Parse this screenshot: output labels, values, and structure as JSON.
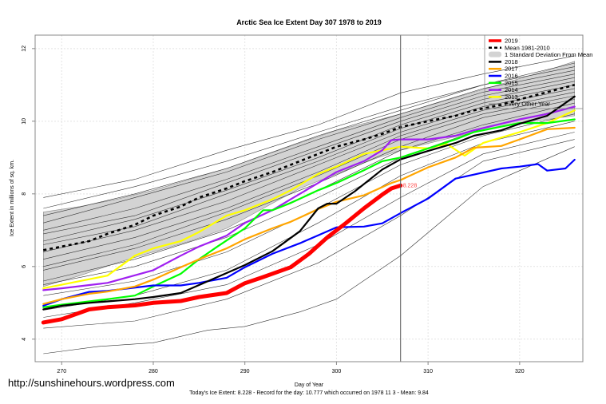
{
  "chart_data": {
    "type": "line",
    "title": "Arctic Sea Ice Extent Day 307 1978 to 2019",
    "xlabel": "Day of Year",
    "ylabel": "Ice Extent in millions of sq. km.",
    "xlim": [
      267.1,
      326.9
    ],
    "ylim": [
      3.38,
      12.37
    ],
    "xticks": [
      270,
      280,
      290,
      300,
      310,
      320
    ],
    "yticks": [
      4,
      6,
      8,
      10,
      12
    ],
    "grid": true,
    "legend_position": "top-right",
    "current_day": 307,
    "current_value_label": "8.228",
    "footer": "Today's Ice Extent: 8.228  - Record for the day: 10.777 which occurred on 1978 11 3  - Mean: 9.84",
    "legend": [
      {
        "label": "2019",
        "color": "#ff0000",
        "style": "thick"
      },
      {
        "label": "Mean 1981-2010",
        "color": "#000000",
        "style": "dashed"
      },
      {
        "label": "1 Standard Deviation From Mean",
        "color": "#d3d3d3",
        "style": "band"
      },
      {
        "label": "2018",
        "color": "#000000",
        "style": "solid"
      },
      {
        "label": "2017",
        "color": "#ffa500",
        "style": "solid"
      },
      {
        "label": "2016",
        "color": "#0000ff",
        "style": "solid"
      },
      {
        "label": "2015",
        "color": "#00ff00",
        "style": "solid"
      },
      {
        "label": "2014",
        "color": "#a020f0",
        "style": "solid"
      },
      {
        "label": "2013",
        "color": "#ffff00",
        "style": "solid"
      },
      {
        "label": "Every Other Year",
        "color": "#444444",
        "style": "thin"
      }
    ],
    "std_band": {
      "x": [
        268,
        272,
        276,
        280,
        284,
        288,
        292,
        296,
        300,
        304,
        307,
        311,
        315,
        319,
        323,
        326
      ],
      "upper": [
        7.5,
        7.65,
        7.85,
        8.1,
        8.4,
        8.7,
        9.05,
        9.4,
        9.75,
        10.0,
        10.2,
        10.5,
        10.8,
        11.1,
        11.4,
        11.65
      ],
      "lower": [
        5.45,
        5.75,
        6.1,
        6.4,
        6.7,
        7.05,
        7.6,
        8.15,
        8.55,
        8.95,
        9.2,
        9.45,
        9.7,
        9.9,
        10.05,
        10.15
      ]
    },
    "mean": {
      "x": [
        268,
        270,
        273,
        275,
        278,
        280,
        283,
        285,
        288,
        290,
        293,
        295,
        298,
        300,
        303,
        305,
        307,
        310,
        313,
        315,
        318,
        320,
        323,
        326
      ],
      "values": [
        6.45,
        6.55,
        6.7,
        6.9,
        7.15,
        7.4,
        7.65,
        7.9,
        8.15,
        8.35,
        8.6,
        8.8,
        9.1,
        9.3,
        9.5,
        9.65,
        9.84,
        10.0,
        10.15,
        10.3,
        10.45,
        10.6,
        10.8,
        11.0
      ]
    },
    "series": [
      {
        "name": "2019",
        "color": "#ff0000",
        "width": 5,
        "x": [
          268,
          270,
          273,
          275,
          278,
          280,
          283,
          285,
          288,
          290,
          292,
          295,
          297,
          299,
          301,
          303,
          305,
          306,
          307
        ],
        "values": [
          4.46,
          4.55,
          4.82,
          4.88,
          4.93,
          5.0,
          5.05,
          5.16,
          5.27,
          5.54,
          5.71,
          5.98,
          6.35,
          6.8,
          7.19,
          7.6,
          7.98,
          8.15,
          8.228
        ]
      },
      {
        "name": "2018",
        "color": "#000000",
        "width": 2.2,
        "x": [
          268,
          270,
          273,
          275,
          278,
          280,
          283,
          285,
          288,
          290,
          293,
          296,
          298,
          299,
          300,
          302,
          305,
          307,
          310,
          313,
          315,
          318,
          320,
          323,
          326
        ],
        "values": [
          4.82,
          4.92,
          5.0,
          5.04,
          5.1,
          5.16,
          5.27,
          5.49,
          5.82,
          6.04,
          6.42,
          6.97,
          7.6,
          7.73,
          7.73,
          8.07,
          8.67,
          8.95,
          9.18,
          9.4,
          9.6,
          9.75,
          9.93,
          10.15,
          10.68
        ]
      },
      {
        "name": "2017",
        "color": "#ffa500",
        "width": 2.2,
        "x": [
          268,
          270,
          273,
          275,
          278,
          280,
          283,
          285,
          288,
          290,
          293,
          295,
          298,
          300,
          303,
          306,
          307,
          310,
          313,
          315,
          318,
          320,
          323,
          326
        ],
        "values": [
          4.97,
          5.1,
          5.25,
          5.31,
          5.45,
          5.64,
          5.98,
          6.2,
          6.5,
          6.75,
          7.05,
          7.23,
          7.58,
          7.78,
          7.96,
          8.3,
          8.38,
          8.73,
          9.0,
          9.27,
          9.32,
          9.5,
          9.78,
          9.82
        ]
      },
      {
        "name": "2016",
        "color": "#0000ff",
        "width": 2.2,
        "x": [
          268,
          270,
          273,
          275,
          280,
          283,
          285,
          288,
          290,
          293,
          296,
          298,
          300,
          303,
          305,
          307,
          310,
          313,
          315,
          318,
          320,
          322,
          323,
          325,
          326
        ],
        "values": [
          4.92,
          5.1,
          5.3,
          5.33,
          5.48,
          5.48,
          5.55,
          5.69,
          5.98,
          6.35,
          6.64,
          6.86,
          7.08,
          7.1,
          7.19,
          7.47,
          7.87,
          8.42,
          8.53,
          8.7,
          8.75,
          8.82,
          8.64,
          8.7,
          8.94
        ]
      },
      {
        "name": "2015",
        "color": "#00ff00",
        "width": 2.2,
        "x": [
          268,
          270,
          275,
          278,
          280,
          283,
          285,
          287,
          290,
          292,
          293,
          295,
          298,
          300,
          303,
          305,
          307,
          310,
          313,
          315,
          318,
          320,
          323,
          326
        ],
        "values": [
          4.88,
          4.95,
          5.1,
          5.2,
          5.45,
          5.8,
          6.2,
          6.55,
          7.05,
          7.55,
          7.55,
          7.75,
          8.1,
          8.3,
          8.65,
          8.9,
          9.0,
          9.25,
          9.5,
          9.7,
          9.85,
          9.95,
          9.95,
          10.05
        ]
      },
      {
        "name": "2014",
        "color": "#a020f0",
        "width": 2.2,
        "x": [
          268,
          270,
          275,
          280,
          283,
          285,
          288,
          290,
          293,
          295,
          298,
          300,
          303,
          305,
          306,
          307,
          310,
          313,
          315,
          320,
          323,
          326
        ],
        "values": [
          5.35,
          5.4,
          5.55,
          5.9,
          6.3,
          6.55,
          6.85,
          7.2,
          7.55,
          7.85,
          8.3,
          8.6,
          8.9,
          9.2,
          9.48,
          9.5,
          9.5,
          9.6,
          9.75,
          10.05,
          10.2,
          10.4
        ]
      },
      {
        "name": "2013",
        "color": "#ffff00",
        "width": 2.2,
        "x": [
          268,
          270,
          275,
          278,
          280,
          283,
          285,
          288,
          290,
          293,
          295,
          298,
          300,
          303,
          305,
          307,
          310,
          312,
          314,
          316,
          318,
          320,
          323,
          326
        ],
        "values": [
          5.4,
          5.5,
          5.75,
          6.3,
          6.5,
          6.7,
          6.95,
          7.4,
          7.55,
          7.85,
          8.1,
          8.55,
          8.75,
          9.1,
          9.2,
          9.3,
          9.25,
          9.38,
          9.05,
          9.4,
          9.55,
          9.7,
          9.95,
          10.3
        ]
      }
    ],
    "other_years": [
      {
        "x": [
          268,
          278,
          288,
          298,
          307,
          316,
          326
        ],
        "values": [
          7.9,
          8.4,
          9.2,
          9.9,
          10.78,
          11.3,
          11.8
        ]
      },
      {
        "x": [
          268,
          278,
          288,
          298,
          307,
          316,
          326
        ],
        "values": [
          7.6,
          8.2,
          8.9,
          9.7,
          10.4,
          11.0,
          11.6
        ]
      },
      {
        "x": [
          268,
          278,
          288,
          298,
          307,
          316,
          326
        ],
        "values": [
          7.4,
          8.0,
          8.7,
          9.6,
          10.3,
          11.0,
          11.5
        ]
      },
      {
        "x": [
          268,
          278,
          288,
          298,
          307,
          316,
          326
        ],
        "values": [
          7.2,
          7.9,
          8.6,
          9.5,
          10.2,
          10.9,
          11.4
        ]
      },
      {
        "x": [
          268,
          278,
          288,
          298,
          307,
          316,
          326
        ],
        "values": [
          7.0,
          7.6,
          8.4,
          9.3,
          10.1,
          10.8,
          11.3
        ]
      },
      {
        "x": [
          268,
          278,
          288,
          298,
          307,
          316,
          326
        ],
        "values": [
          6.9,
          7.4,
          8.3,
          9.2,
          10.0,
          10.7,
          11.2
        ]
      },
      {
        "x": [
          268,
          278,
          288,
          298,
          307,
          316,
          326
        ],
        "values": [
          6.7,
          7.3,
          8.1,
          9.0,
          9.9,
          10.6,
          11.1
        ]
      },
      {
        "x": [
          268,
          278,
          288,
          298,
          307,
          316,
          326
        ],
        "values": [
          6.6,
          7.1,
          8.0,
          8.9,
          9.8,
          10.5,
          11.0
        ]
      },
      {
        "x": [
          268,
          278,
          288,
          298,
          307,
          316,
          326
        ],
        "values": [
          6.4,
          7.0,
          7.8,
          8.8,
          9.7,
          10.4,
          10.9
        ]
      },
      {
        "x": [
          268,
          278,
          288,
          298,
          307,
          316,
          326
        ],
        "values": [
          6.2,
          6.8,
          7.6,
          8.6,
          9.6,
          10.3,
          10.8
        ]
      },
      {
        "x": [
          268,
          278,
          288,
          298,
          307,
          316,
          326
        ],
        "values": [
          6.0,
          6.6,
          7.5,
          8.5,
          9.5,
          10.2,
          10.7
        ]
      },
      {
        "x": [
          268,
          278,
          288,
          298,
          307,
          316,
          326
        ],
        "values": [
          5.9,
          6.5,
          7.3,
          8.3,
          9.3,
          10.1,
          10.6
        ]
      },
      {
        "x": [
          268,
          278,
          288,
          298,
          307,
          316,
          326
        ],
        "values": [
          5.6,
          6.2,
          7.0,
          8.1,
          9.2,
          9.9,
          10.5
        ]
      },
      {
        "x": [
          268,
          278,
          288,
          298,
          307,
          316,
          326
        ],
        "values": [
          5.5,
          6.0,
          6.8,
          7.9,
          9.0,
          9.8,
          10.4
        ]
      },
      {
        "x": [
          268,
          278,
          288,
          298,
          307,
          316,
          326
        ],
        "values": [
          5.2,
          5.6,
          6.4,
          7.6,
          8.8,
          9.6,
          10.2
        ]
      },
      {
        "x": [
          268,
          278,
          288,
          298,
          307,
          316,
          326
        ],
        "values": [
          4.8,
          5.2,
          5.9,
          7.2,
          8.5,
          9.4,
          10.0
        ]
      },
      {
        "x": [
          268,
          278,
          288,
          298,
          307,
          316,
          326
        ],
        "values": [
          4.6,
          5.0,
          5.5,
          6.6,
          7.9,
          9.1,
          9.7
        ]
      },
      {
        "x": [
          268,
          278,
          288,
          298,
          307,
          316,
          326
        ],
        "values": [
          4.3,
          4.5,
          5.1,
          6.1,
          7.4,
          8.9,
          9.5
        ]
      },
      {
        "x": [
          268,
          274,
          280,
          286,
          290,
          296,
          300,
          307,
          316,
          326
        ],
        "values": [
          3.6,
          3.8,
          3.9,
          4.25,
          4.35,
          4.75,
          5.1,
          6.3,
          8.2,
          9.3
        ]
      }
    ]
  },
  "watermark": "http://sunshinehours.wordpress.com"
}
